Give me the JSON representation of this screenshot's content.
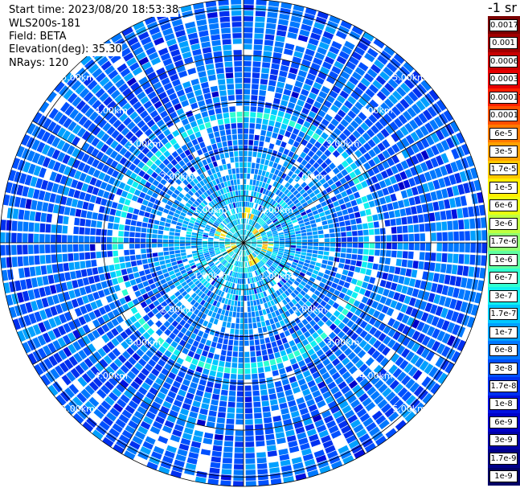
{
  "header": {
    "start_time": "Start time: 2023/08/20 18:53:38",
    "instrument": "WLS200s-181",
    "field": "Field: BETA",
    "elevation": "Elevation(deg): 35.30",
    "nrays": "NRays: 120"
  },
  "colorbar": {
    "unit": "-1 sr",
    "labels": [
      "0.0017",
      "0.001",
      "0.0006",
      "0.0003",
      "0.00017",
      "0.0001",
      "6e-5",
      "3e-5",
      "1.7e-5",
      "1e-5",
      "6e-6",
      "3e-6",
      "1.7e-6",
      "1e-6",
      "6e-7",
      "3e-7",
      "1.7e-7",
      "1e-7",
      "6e-8",
      "3e-8",
      "1.7e-8",
      "1e-8",
      "6e-9",
      "3e-9",
      "1.7e-9",
      "1e-9"
    ],
    "colors": [
      "#7a0000",
      "#a00000",
      "#c80000",
      "#e60000",
      "#ff2000",
      "#ff5000",
      "#ff7a00",
      "#ffa000",
      "#ffc800",
      "#ffee00",
      "#e8ff10",
      "#c0ff40",
      "#90ff70",
      "#60ffa0",
      "#30ffd0",
      "#10f0f0",
      "#00c8ff",
      "#00a0ff",
      "#0078ff",
      "#0050ff",
      "#0030f0",
      "#0010e0",
      "#0000c8",
      "#0000a8",
      "#000088",
      "#000066"
    ]
  },
  "chart_data": {
    "type": "ppi",
    "field": "BETA",
    "nrays": 120,
    "elevation_deg": 35.3,
    "range_unit": "km",
    "range_rings_km": [
      1.0,
      2.0,
      3.0,
      4.0,
      5.0
    ],
    "max_range_km": 5.2,
    "ring_labels": [
      "1.00km",
      "2.00km",
      "3.00km",
      "4.00km",
      "5.00km"
    ],
    "ring_label_bearings_deg": [
      135,
      225,
      315,
      45
    ],
    "aerosol_layer_range_km": 2.7,
    "near_field_hotspots_km": [
      [
        -0.5,
        0.2
      ],
      [
        0.3,
        0.2
      ],
      [
        0.5,
        -0.1
      ],
      [
        -0.3,
        -0.1
      ],
      [
        0.2,
        -0.4
      ],
      [
        0.1,
        0.6
      ]
    ],
    "spoke_bearings_deg": [
      0,
      30,
      60,
      90,
      120,
      150,
      180,
      210,
      240,
      270,
      300,
      330
    ],
    "grid": true
  }
}
